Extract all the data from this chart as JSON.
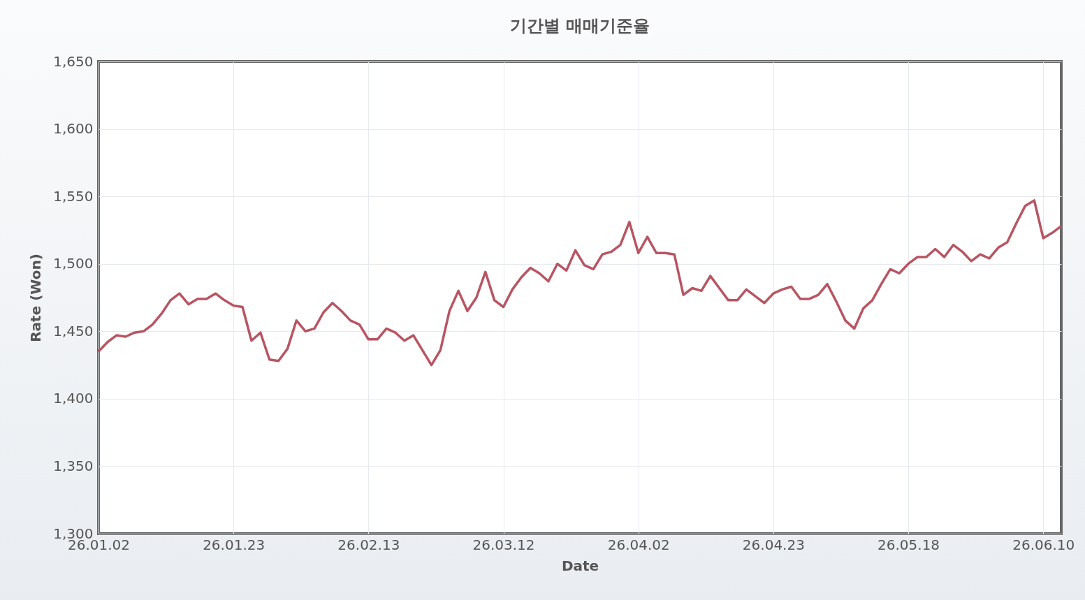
{
  "chart_data": {
    "type": "line",
    "title": "기간별 매매기준율",
    "xlabel": "Date",
    "ylabel": "Rate (Won)",
    "categories": [
      "26.01.02",
      null,
      null,
      null,
      null,
      null,
      null,
      null,
      null,
      null,
      null,
      null,
      null,
      null,
      null,
      "26.01.23",
      null,
      null,
      null,
      null,
      null,
      null,
      null,
      null,
      null,
      null,
      null,
      null,
      null,
      null,
      "26.02.13",
      null,
      null,
      null,
      null,
      null,
      null,
      null,
      null,
      null,
      null,
      null,
      null,
      null,
      null,
      "26.03.12",
      null,
      null,
      null,
      null,
      null,
      null,
      null,
      null,
      null,
      null,
      null,
      null,
      null,
      null,
      "26.04.02",
      null,
      null,
      null,
      null,
      null,
      null,
      null,
      null,
      null,
      null,
      null,
      null,
      null,
      null,
      "26.04.23",
      null,
      null,
      null,
      null,
      null,
      null,
      null,
      null,
      null,
      null,
      null,
      null,
      null,
      null,
      "26.05.18",
      null,
      null,
      null,
      null,
      null,
      null,
      null,
      null,
      null,
      null,
      null,
      null,
      null,
      null,
      "26.06.10",
      null,
      null
    ],
    "series": [
      {
        "color": "#b85562",
        "values": [
          1435,
          1442,
          1447,
          1446,
          1449,
          1450,
          1455,
          1463,
          1473,
          1478,
          1470,
          1474,
          1474,
          1478,
          1473,
          1469,
          1468,
          1443,
          1449,
          1429,
          1428,
          1437,
          1458,
          1450,
          1452,
          1464,
          1471,
          1465,
          1458,
          1455,
          1444,
          1444,
          1452,
          1449,
          1443,
          1447,
          1436,
          1425,
          1436,
          1465,
          1480,
          1465,
          1475,
          1494,
          1473,
          1468,
          1481,
          1490,
          1497,
          1493,
          1487,
          1500,
          1495,
          1510,
          1499,
          1496,
          1507,
          1509,
          1514,
          1531,
          1508,
          1520,
          1508,
          1508,
          1507,
          1477,
          1482,
          1480,
          1491,
          1482,
          1473,
          1473,
          1481,
          1476,
          1471,
          1478,
          1481,
          1483,
          1474,
          1474,
          1477,
          1485,
          1472,
          1458,
          1452,
          1467,
          1473,
          1485,
          1496,
          1493,
          1500,
          1505,
          1505,
          1511,
          1505,
          1514,
          1509,
          1502,
          1507,
          1504,
          1512,
          1516,
          1530,
          1543,
          1547,
          1519,
          1523,
          1528
        ]
      }
    ],
    "ylim": [
      1300,
      1650
    ],
    "yticks": [
      {
        "value": 1300,
        "label": "1,300"
      },
      {
        "value": 1350,
        "label": "1,350"
      },
      {
        "value": 1400,
        "label": "1,400"
      },
      {
        "value": 1450,
        "label": "1,450"
      },
      {
        "value": 1500,
        "label": "1,500"
      },
      {
        "value": 1550,
        "label": "1,550"
      },
      {
        "value": 1600,
        "label": "1,600"
      },
      {
        "value": 1650,
        "label": "1,650"
      }
    ],
    "grid": true,
    "line_style": "solid",
    "marker": "none",
    "legend": false
  }
}
